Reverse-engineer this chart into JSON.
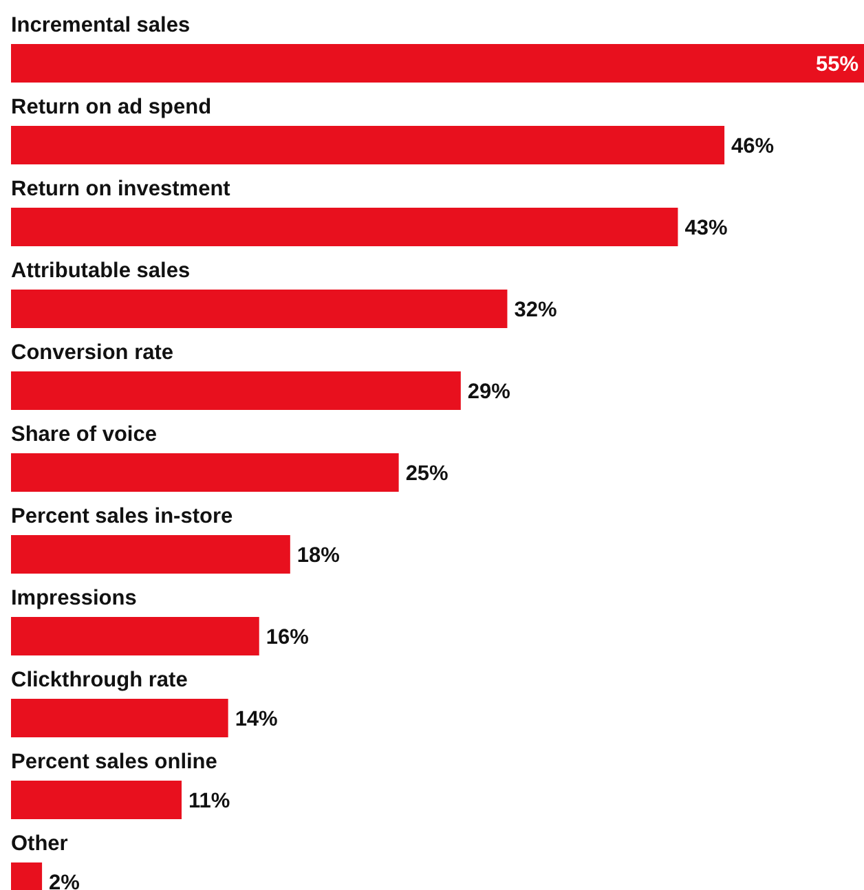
{
  "chart_data": {
    "type": "bar",
    "orientation": "horizontal",
    "categories": [
      "Incremental sales",
      "Return on ad spend",
      "Return on investment",
      "Attributable sales",
      "Conversion rate",
      "Share of voice",
      "Percent sales in-store",
      "Impressions",
      "Clickthrough rate",
      "Percent sales online",
      "Other"
    ],
    "values": [
      55,
      46,
      43,
      32,
      29,
      25,
      18,
      16,
      14,
      11,
      2
    ],
    "value_labels": [
      "55%",
      "46%",
      "43%",
      "32%",
      "29%",
      "25%",
      "18%",
      "16%",
      "14%",
      "11%",
      "2%"
    ],
    "color": "#e8101e",
    "xlim": [
      0,
      55
    ]
  }
}
